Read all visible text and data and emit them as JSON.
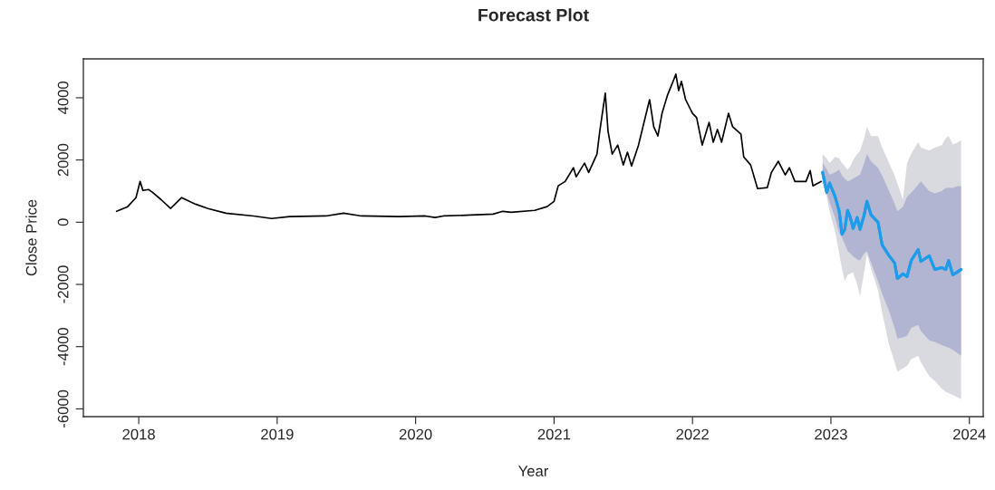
{
  "chart_data": {
    "type": "line",
    "title": "Forecast Plot",
    "xlabel": "Year",
    "ylabel": "Close Price",
    "xlim": [
      2017.6,
      2024.1
    ],
    "xticks": [
      2018,
      2019,
      2020,
      2021,
      2022,
      2023,
      2024
    ],
    "ylim": [
      -6250,
      5250
    ],
    "yticks": [
      -6000,
      -4000,
      -2000,
      0,
      2000,
      4000
    ],
    "grid": false,
    "legend": false,
    "series": [
      {
        "color": "#000000",
        "x": [
          2017.84,
          2017.92,
          2017.98,
          2018.01,
          2018.03,
          2018.07,
          2018.1,
          2018.16,
          2018.23,
          2018.31,
          2018.41,
          2018.5,
          2018.63,
          2018.83,
          2018.96,
          2019.09,
          2019.35,
          2019.48,
          2019.61,
          2019.88,
          2020.07,
          2020.14,
          2020.2,
          2020.4,
          2020.56,
          2020.63,
          2020.69,
          2020.86,
          2020.95,
          2021.0,
          2021.03,
          2021.08,
          2021.14,
          2021.16,
          2021.22,
          2021.25,
          2021.31,
          2021.33,
          2021.37,
          2021.39,
          2021.42,
          2021.46,
          2021.5,
          2021.53,
          2021.56,
          2021.61,
          2021.65,
          2021.69,
          2021.72,
          2021.75,
          2021.78,
          2021.82,
          2021.86,
          2021.88,
          2021.9,
          2021.92,
          2021.95,
          2022.0,
          2022.03,
          2022.07,
          2022.12,
          2022.15,
          2022.18,
          2022.21,
          2022.26,
          2022.29,
          2022.35,
          2022.37,
          2022.42,
          2022.47,
          2022.54,
          2022.57,
          2022.62,
          2022.67,
          2022.7,
          2022.74,
          2022.82,
          2022.85,
          2022.87,
          2022.93
        ],
        "values": [
          350,
          500,
          790,
          1310,
          1020,
          1050,
          960,
          730,
          440,
          790,
          580,
          440,
          290,
          200,
          120,
          180,
          200,
          290,
          200,
          180,
          200,
          150,
          200,
          230,
          260,
          350,
          320,
          380,
          500,
          670,
          1170,
          1310,
          1750,
          1460,
          1900,
          1600,
          2190,
          2920,
          4150,
          2920,
          2190,
          2480,
          1840,
          2250,
          1810,
          2480,
          3210,
          3940,
          3070,
          2770,
          3500,
          4090,
          4530,
          4760,
          4230,
          4530,
          3940,
          3500,
          3360,
          2480,
          3210,
          2570,
          2980,
          2570,
          3500,
          3070,
          2830,
          2100,
          1840,
          1080,
          1110,
          1600,
          1960,
          1520,
          1750,
          1310,
          1310,
          1660,
          1170,
          1310
        ]
      },
      {
        "color": "#1e9be9",
        "x": [
          2022.94,
          2022.97,
          2022.99,
          2023.03,
          2023.06,
          2023.08,
          2023.1,
          2023.12,
          2023.14,
          2023.16,
          2023.19,
          2023.21,
          2023.24,
          2023.26,
          2023.29,
          2023.34,
          2023.37,
          2023.42,
          2023.46,
          2023.48,
          2023.52,
          2023.55,
          2023.58,
          2023.63,
          2023.65,
          2023.71,
          2023.75,
          2023.8,
          2023.83,
          2023.85,
          2023.88,
          2023.91,
          2023.94
        ],
        "values": [
          1600,
          960,
          1260,
          820,
          350,
          -380,
          -230,
          380,
          150,
          -200,
          150,
          -230,
          230,
          670,
          230,
          0,
          -730,
          -1080,
          -1310,
          -1810,
          -1660,
          -1750,
          -1230,
          -880,
          -1260,
          -1080,
          -1520,
          -1460,
          -1520,
          -1230,
          -1690,
          -1610,
          -1520
        ],
        "lower": [
          1230,
          800,
          350,
          -300,
          -1020,
          -1500,
          -1900,
          -1700,
          -1650,
          -1610,
          -2000,
          -2390,
          -1600,
          -1020,
          -1500,
          -2190,
          -2900,
          -3940,
          -4500,
          -4800,
          -4700,
          -4610,
          -4400,
          -4300,
          -4500,
          -4950,
          -5100,
          -5350,
          -5450,
          -5490,
          -5550,
          -5620,
          -5690
        ],
        "upper": [
          2190,
          2050,
          1900,
          2100,
          2050,
          1900,
          1800,
          1690,
          1800,
          2000,
          2200,
          2280,
          2700,
          3070,
          2770,
          2770,
          2400,
          1900,
          1500,
          1250,
          730,
          1900,
          2200,
          2570,
          2400,
          2300,
          2400,
          2480,
          2700,
          2770,
          2500,
          2550,
          2630
        ]
      },
      {
        "color": "#1e9be9",
        "x": [
          2022.94,
          2022.97,
          2022.99,
          2023.03,
          2023.06,
          2023.08,
          2023.1,
          2023.12,
          2023.14,
          2023.16,
          2023.19,
          2023.21,
          2023.24,
          2023.26,
          2023.29,
          2023.34,
          2023.37,
          2023.42,
          2023.46,
          2023.48,
          2023.52,
          2023.55,
          2023.58,
          2023.63,
          2023.65,
          2023.71,
          2023.75,
          2023.8,
          2023.83,
          2023.85,
          2023.88,
          2023.91,
          2023.94
        ],
        "values": [
          1600,
          960,
          1260,
          820,
          350,
          -380,
          -230,
          380,
          150,
          -200,
          150,
          -230,
          230,
          670,
          230,
          0,
          -730,
          -1080,
          -1310,
          -1810,
          -1660,
          -1750,
          -1230,
          -880,
          -1260,
          -1080,
          -1520,
          -1460,
          -1520,
          -1230,
          -1690,
          -1610,
          -1520
        ],
        "lower": [
          1310,
          950,
          640,
          150,
          -350,
          -500,
          -700,
          -930,
          -1000,
          -1100,
          -1200,
          -1230,
          -1000,
          -930,
          -1300,
          -1900,
          -2300,
          -2860,
          -3400,
          -3740,
          -3700,
          -3650,
          -3400,
          -3300,
          -3500,
          -3800,
          -3850,
          -3950,
          -4000,
          -4030,
          -4100,
          -4200,
          -4290
        ],
        "upper": [
          1900,
          1700,
          1520,
          1600,
          1690,
          1500,
          1400,
          1310,
          1350,
          1400,
          1480,
          1520,
          1900,
          2190,
          1950,
          1750,
          1500,
          1000,
          600,
          350,
          500,
          820,
          950,
          1200,
          1310,
          1000,
          930,
          1000,
          1100,
          1110,
          1100,
          1150,
          1170
        ]
      }
    ]
  }
}
